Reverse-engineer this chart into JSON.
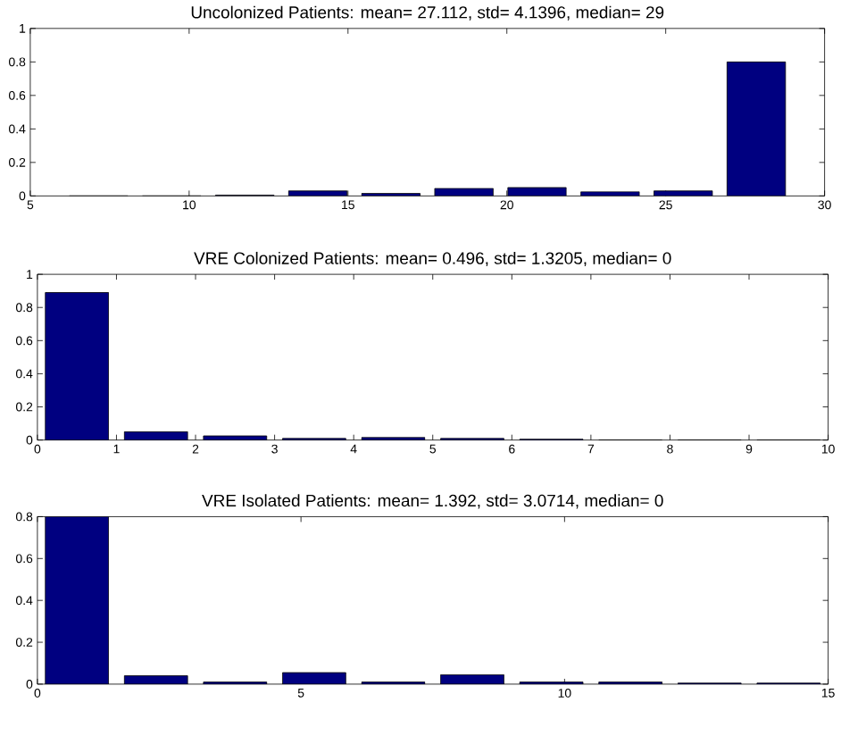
{
  "chart_data": [
    {
      "type": "histogram",
      "title": "Uncolonized Patients:  mean= 27.112,  std= 4.1396,  median= 29",
      "color": "#000080",
      "bins": [
        6,
        8.3,
        10.6,
        12.9,
        15.2,
        17.5,
        19.8,
        22.1,
        24.4,
        26.7,
        29
      ],
      "values": [
        0,
        0,
        0.005,
        0.03,
        0.015,
        0.045,
        0.05,
        0.025,
        0.03,
        0.8
      ],
      "xlim": [
        5,
        30
      ],
      "xticks": [
        5,
        10,
        15,
        20,
        25,
        30
      ],
      "ylim": [
        0,
        1
      ],
      "yticks": [
        0,
        0.2,
        0.4,
        0.6,
        0.8,
        1
      ]
    },
    {
      "type": "histogram",
      "title": "VRE Colonized Patients:  mean= 0.496,  std= 1.3205,  median= 0",
      "color": "#000080",
      "bins": [
        0,
        1,
        2,
        3,
        4,
        5,
        6,
        7,
        8,
        9,
        10
      ],
      "values": [
        0.89,
        0.05,
        0.025,
        0.01,
        0.015,
        0.01,
        0.005,
        0,
        0,
        0
      ],
      "xlim": [
        0,
        10
      ],
      "xticks": [
        0,
        1,
        2,
        3,
        4,
        5,
        6,
        7,
        8,
        9,
        10
      ],
      "ylim": [
        0,
        1
      ],
      "yticks": [
        0,
        0.2,
        0.4,
        0.6,
        0.8,
        1
      ]
    },
    {
      "type": "histogram",
      "title": "VRE Isolated Patients:  mean= 1.392,  std= 3.0714,  median= 0",
      "color": "#000080",
      "bins": [
        0,
        1.5,
        3,
        4.5,
        6,
        7.5,
        9,
        10.5,
        12,
        13.5,
        15
      ],
      "values": [
        0.8,
        0.04,
        0.01,
        0.055,
        0.01,
        0.045,
        0.01,
        0.01,
        0.005,
        0.005
      ],
      "xlim": [
        0,
        15
      ],
      "xticks": [
        0,
        5,
        10,
        15
      ],
      "ylim": [
        0,
        0.8
      ],
      "yticks": [
        0,
        0.2,
        0.4,
        0.6,
        0.8
      ]
    }
  ]
}
